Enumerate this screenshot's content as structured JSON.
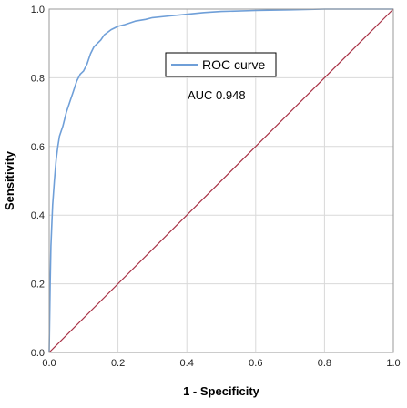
{
  "chart_data": {
    "type": "line",
    "title": "",
    "xlabel": "1 - Specificity",
    "ylabel": "Sensitivity",
    "xlim": [
      0.0,
      1.0
    ],
    "ylim": [
      0.0,
      1.0
    ],
    "grid": true,
    "legend_position": "top-center",
    "x_ticks": [
      "0.0",
      "0.2",
      "0.4",
      "0.6",
      "0.8",
      "1.0"
    ],
    "y_ticks": [
      "0.0",
      "0.2",
      "0.4",
      "0.6",
      "0.8",
      "1.0"
    ],
    "annotation": "AUC 0.948",
    "series": [
      {
        "name": "ROC curve",
        "color": "#6f9fd8",
        "x": [
          0.0,
          0.003,
          0.005,
          0.008,
          0.01,
          0.015,
          0.02,
          0.025,
          0.03,
          0.04,
          0.05,
          0.06,
          0.07,
          0.08,
          0.09,
          0.1,
          0.11,
          0.12,
          0.13,
          0.14,
          0.15,
          0.16,
          0.18,
          0.2,
          0.22,
          0.25,
          0.28,
          0.3,
          0.35,
          0.4,
          0.45,
          0.5,
          0.6,
          0.7,
          0.8,
          0.9,
          1.0
        ],
        "y": [
          0.0,
          0.2,
          0.31,
          0.38,
          0.43,
          0.5,
          0.56,
          0.6,
          0.63,
          0.66,
          0.7,
          0.73,
          0.76,
          0.79,
          0.81,
          0.82,
          0.84,
          0.87,
          0.89,
          0.9,
          0.91,
          0.925,
          0.94,
          0.95,
          0.955,
          0.965,
          0.97,
          0.975,
          0.98,
          0.985,
          0.99,
          0.993,
          0.996,
          0.998,
          1.0,
          1.0,
          1.0
        ]
      },
      {
        "name": "",
        "color": "#a83246",
        "x": [
          0.0,
          1.0
        ],
        "y": [
          0.0,
          1.0
        ]
      }
    ]
  }
}
